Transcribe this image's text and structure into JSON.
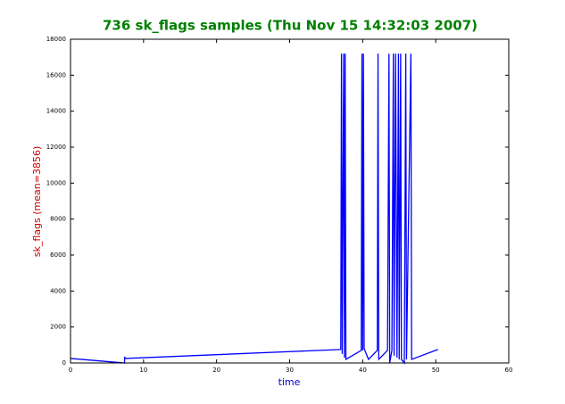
{
  "chart_data": {
    "type": "line",
    "title": "736 sk_flags samples (Thu Nov 15 14:32:03 2007)",
    "x_label": "time",
    "y_label": "sk_flags (mean=3856)",
    "xlim": [
      0,
      60
    ],
    "xticks": [
      0,
      10,
      20,
      30,
      40,
      50,
      60
    ],
    "ylim": [
      0,
      18000
    ],
    "yticks": [
      0,
      2000,
      4000,
      6000,
      8000,
      10000,
      12000,
      14000,
      16000,
      18000
    ],
    "color": "#0000ff",
    "x": [
      0,
      7.4,
      7.4,
      7.5,
      37.0,
      37.1,
      37.2,
      37.4,
      37.5,
      37.6,
      37.7,
      39.8,
      39.9,
      40.0,
      40.1,
      40.2,
      40.8,
      42.0,
      42.1,
      42.2,
      43.4,
      43.6,
      43.7,
      44.0,
      44.2,
      44.3,
      44.5,
      44.7,
      44.9,
      45.0,
      45.2,
      45.3,
      45.7,
      45.9,
      46.0,
      46.6,
      46.7,
      50.3
    ],
    "values": [
      250,
      0,
      350,
      250,
      750,
      17200,
      500,
      17200,
      300,
      17200,
      200,
      700,
      17200,
      700,
      17200,
      800,
      200,
      700,
      17200,
      200,
      700,
      17200,
      0,
      700,
      17200,
      400,
      17200,
      300,
      17200,
      200,
      17200,
      200,
      0,
      17200,
      200,
      17200,
      200,
      750
    ]
  }
}
